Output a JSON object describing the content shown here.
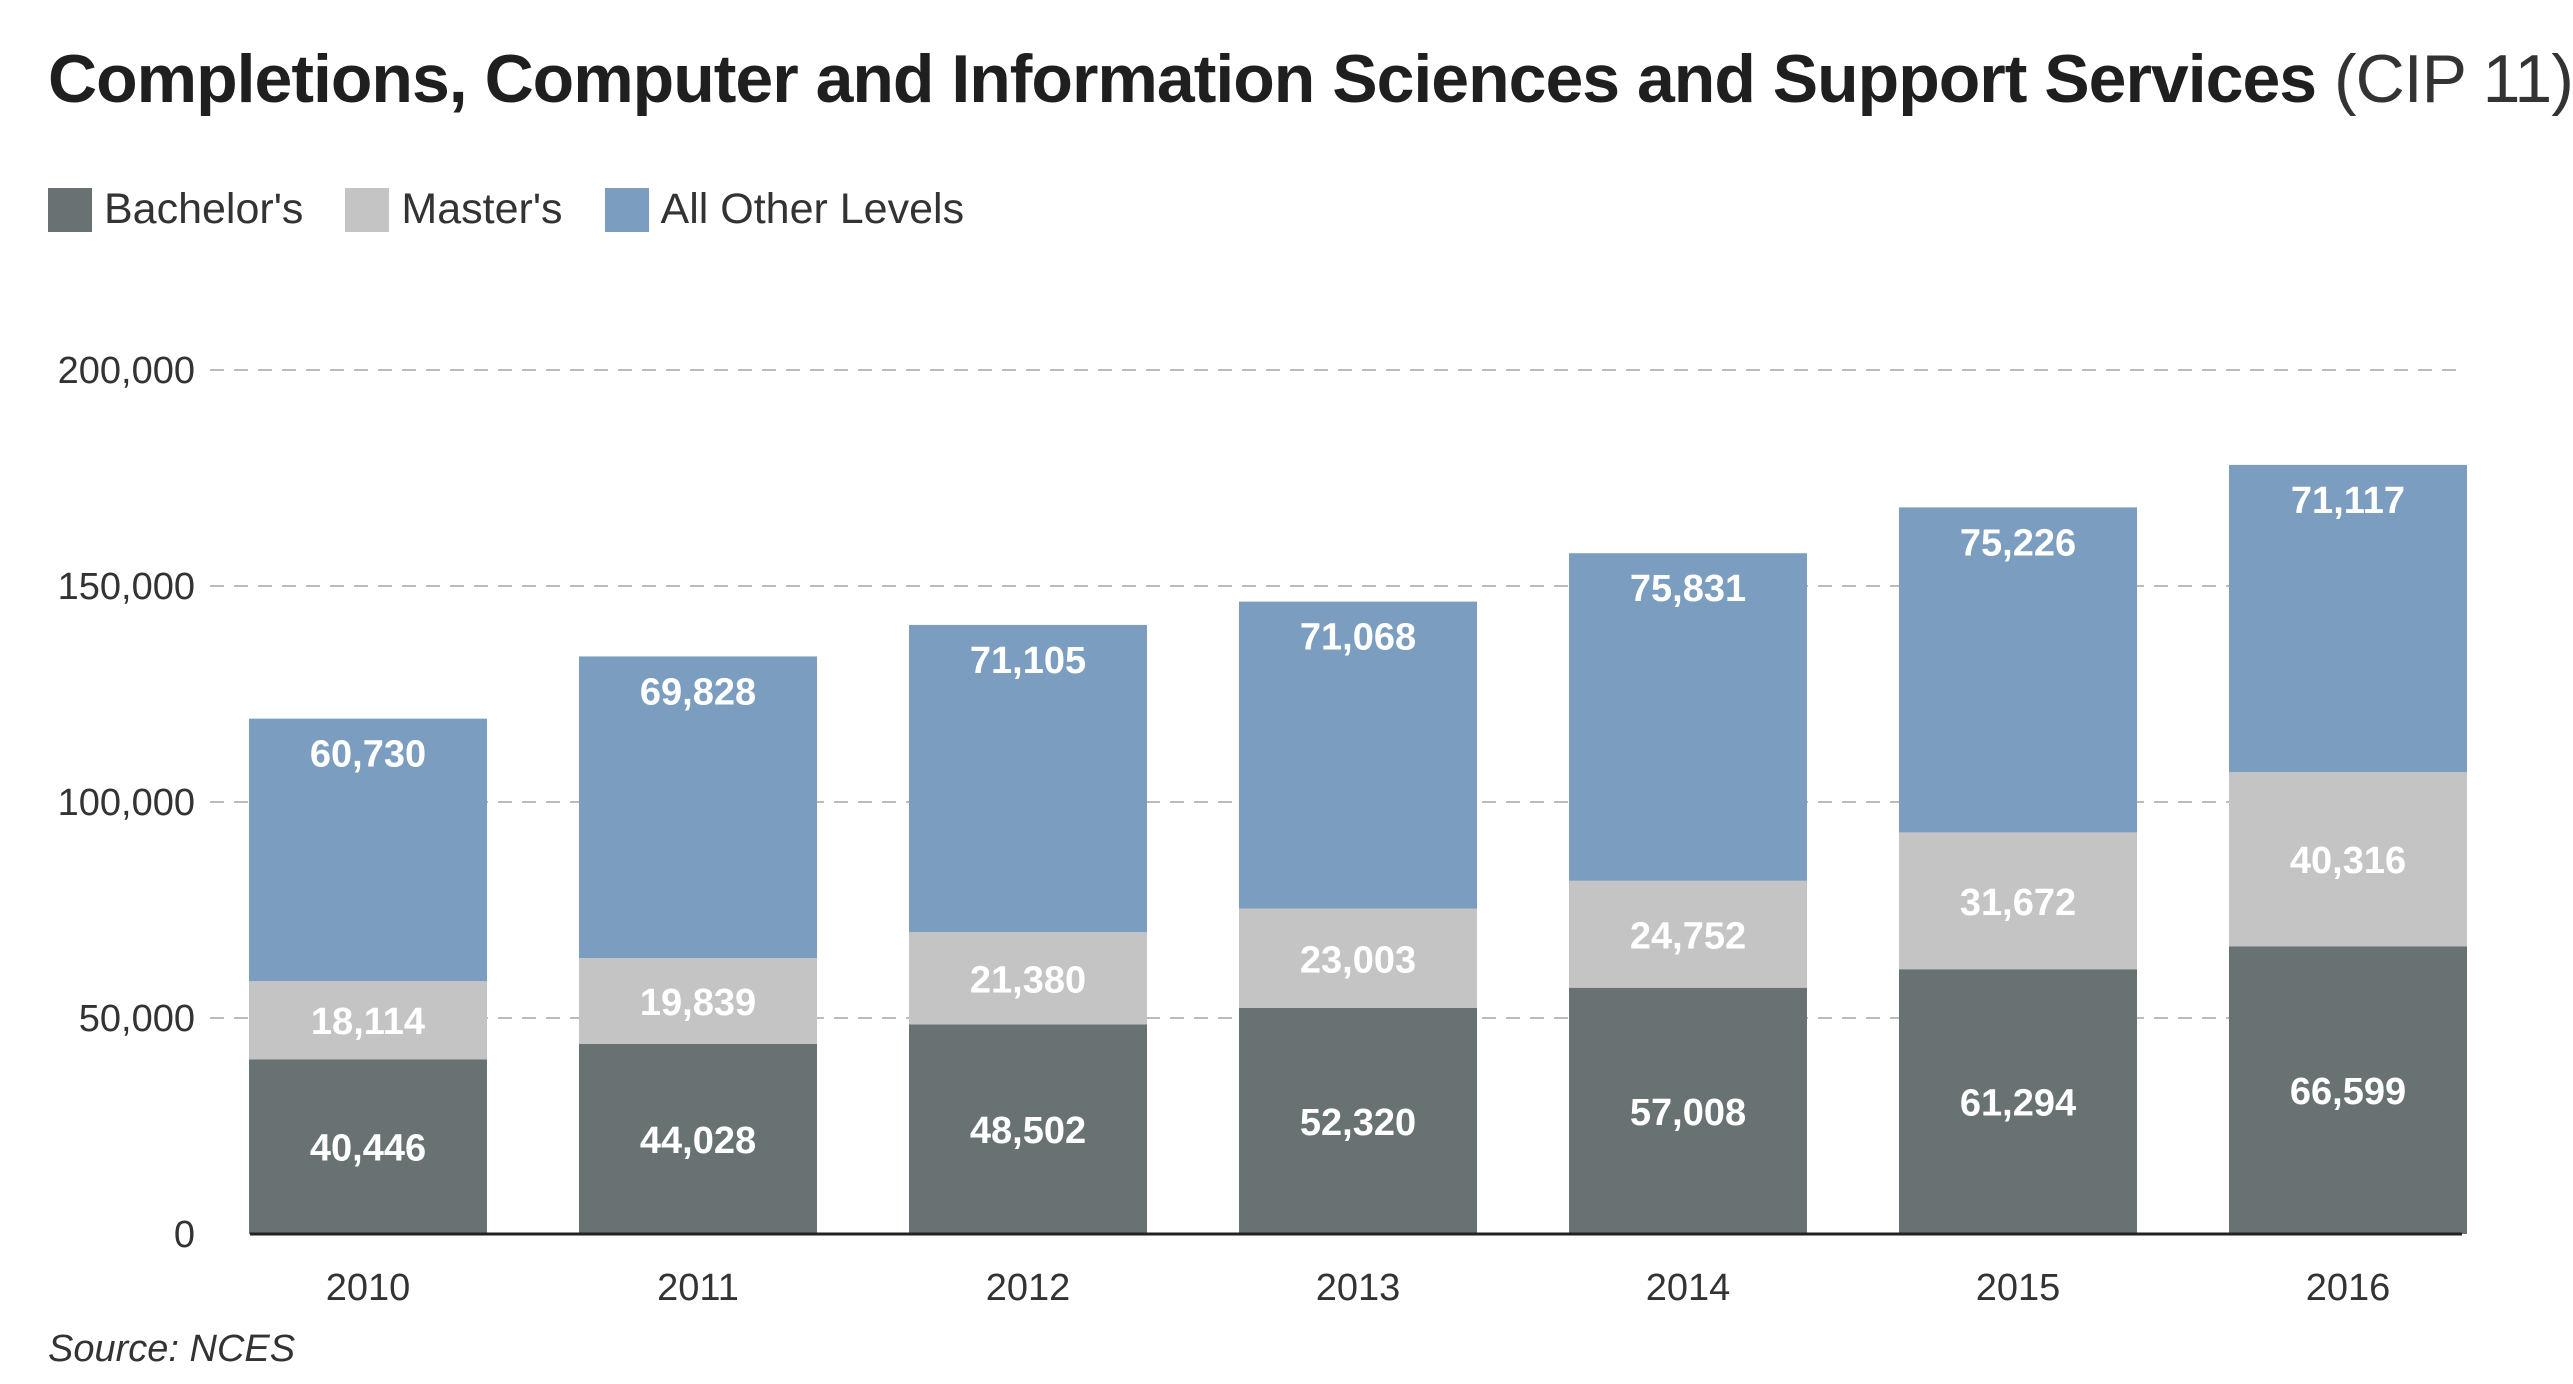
{
  "title": {
    "main": "Completions, Computer and Information Sciences and Support Services",
    "sub": "(CIP 11)"
  },
  "source": "Source: NCES",
  "chart_data": {
    "type": "bar",
    "stacked": true,
    "categories": [
      "2010",
      "2011",
      "2012",
      "2013",
      "2014",
      "2015",
      "2016"
    ],
    "series": [
      {
        "name": "Bachelor's",
        "color": "#687272",
        "values": [
          40446,
          44028,
          48502,
          52320,
          57008,
          61294,
          66599
        ],
        "labels": [
          "40,446",
          "44,028",
          "48,502",
          "52,320",
          "57,008",
          "61,294",
          "66,599"
        ]
      },
      {
        "name": "Master's",
        "color": "#c4c4c4",
        "values": [
          18114,
          19839,
          21380,
          23003,
          24752,
          31672,
          40316
        ],
        "labels": [
          "18,114",
          "19,839",
          "21,380",
          "23,003",
          "24,752",
          "31,672",
          "40,316"
        ]
      },
      {
        "name": "All Other Levels",
        "color": "#7a9dc0",
        "values": [
          60730,
          69828,
          71105,
          71068,
          75831,
          75226,
          71117
        ],
        "labels": [
          "60,730",
          "69,828",
          "71,105",
          "71,068",
          "75,831",
          "75,226",
          "71,117"
        ]
      }
    ],
    "ylim": [
      0,
      200000
    ],
    "yticks": [
      0,
      50000,
      100000,
      150000,
      200000
    ],
    "ytick_labels": [
      "0",
      "50,000",
      "100,000",
      "150,000",
      "200,000"
    ],
    "grid": "dashed horizontal",
    "legend_position": "top-left"
  }
}
